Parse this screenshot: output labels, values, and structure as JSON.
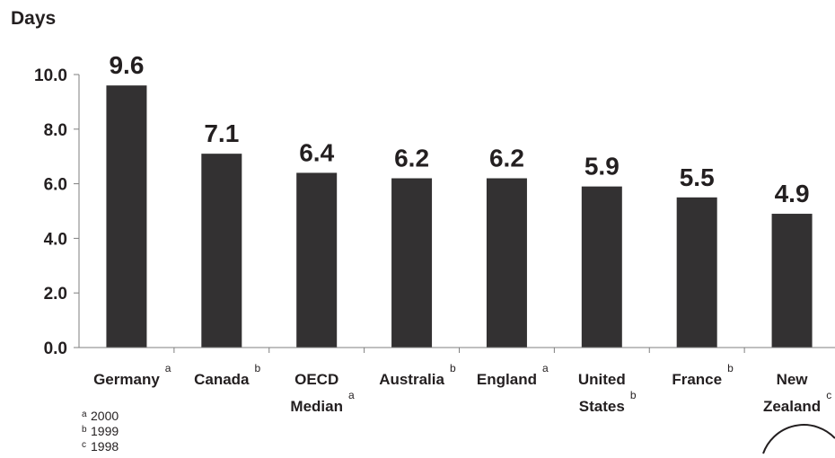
{
  "chart_data": {
    "type": "bar",
    "ylabel": "Days",
    "ylim": [
      0,
      10
    ],
    "yticks": [
      "0.0",
      "2.0",
      "4.0",
      "6.0",
      "8.0",
      "10.0"
    ],
    "categories": [
      {
        "lines": [
          "Germany"
        ],
        "note": "a"
      },
      {
        "lines": [
          "Canada"
        ],
        "note": "b"
      },
      {
        "lines": [
          "OECD",
          "Median"
        ],
        "note": "a"
      },
      {
        "lines": [
          "Australia"
        ],
        "note": "b"
      },
      {
        "lines": [
          "England"
        ],
        "note": "a"
      },
      {
        "lines": [
          "United",
          "States"
        ],
        "note": "b"
      },
      {
        "lines": [
          "France"
        ],
        "note": "b"
      },
      {
        "lines": [
          "New",
          "Zealand"
        ],
        "note": "c"
      }
    ],
    "values": [
      9.6,
      7.1,
      6.4,
      6.2,
      6.2,
      5.9,
      5.5,
      4.9
    ],
    "value_labels": [
      "9.6",
      "7.1",
      "6.4",
      "6.2",
      "6.2",
      "5.9",
      "5.5",
      "4.9"
    ],
    "footnotes": [
      {
        "mark": "a",
        "text": "2000"
      },
      {
        "mark": "b",
        "text": "1999"
      },
      {
        "mark": "c",
        "text": "1998"
      }
    ],
    "grid": false,
    "colors": {
      "bar": "#333132",
      "axis": "#7f7f7f",
      "text": "#231f20"
    }
  }
}
